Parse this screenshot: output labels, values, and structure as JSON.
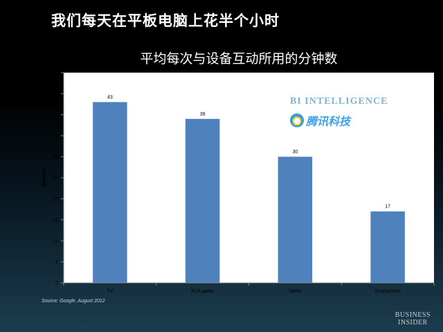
{
  "headline": "我们每天在平板电脑上花半个小时",
  "chart_data": {
    "type": "bar",
    "title": "平均每次与设备互动所用的分钟数",
    "ylabel": "Minutes",
    "xlabel": "",
    "ylim": [
      0,
      50
    ],
    "yticks": [
      0,
      5,
      10,
      15,
      20,
      25,
      30,
      35,
      40,
      45,
      50
    ],
    "categories": [
      "TV",
      "PC/Laptop",
      "Tablet",
      "Smartphone"
    ],
    "values": [
      43,
      39,
      30,
      17
    ],
    "data_labels": true,
    "grid": false,
    "bar_color": "#4f81bd"
  },
  "source": "Source: Google, August 2012",
  "logos": {
    "bi_intelligence": "BI INTELLIGENCE",
    "tencent": "腾讯科技",
    "business_insider_line1": "BUSINESS",
    "business_insider_line2": "INSIDER"
  }
}
